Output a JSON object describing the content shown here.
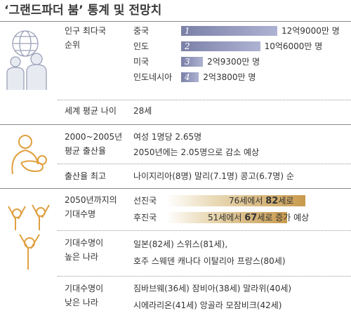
{
  "title": "‘그랜드파더 붐’ 통계 및 전망치",
  "population": {
    "label_lines": [
      "인구 최다국",
      "순위"
    ],
    "rows": [
      {
        "rank": "1",
        "country": "중국",
        "value": 129000,
        "value_label": "12억9000만 명"
      },
      {
        "rank": "2",
        "country": "인도",
        "value": 106000,
        "value_label": "10억6000만 명"
      },
      {
        "rank": "3",
        "country": "미국",
        "value": 29300,
        "value_label": "2억9300만 명"
      },
      {
        "rank": "4",
        "country": "인도네시아",
        "value": 23800,
        "value_label": "2억3800만 명"
      }
    ]
  },
  "world_age": {
    "label": "세계 평균 나이",
    "value": "28세"
  },
  "fertility": {
    "label_lines": [
      "2000~2005년",
      "평균 출산율"
    ],
    "lines": [
      "여성 1명당 2.65명",
      "2050년에는 2.05명으로 감소 예상"
    ]
  },
  "fertility_top": {
    "label": "출산율 최고",
    "text": "나이지리아(8명) 말리(7.1명) 콩고(6.7명) 순"
  },
  "life": {
    "label_lines": [
      "2050년까지의",
      "기대수명"
    ],
    "rows": [
      {
        "group": "선진국",
        "from": "76세에서",
        "to": "82",
        "suffix": "세로"
      },
      {
        "group": "후진국",
        "from": "51세에서",
        "to": "67",
        "suffix": "세로 증가 예상"
      }
    ]
  },
  "high": {
    "label_lines": [
      "기대수명이",
      "높은 나라"
    ],
    "lines": [
      "일본(82세) 스위스(81세),",
      "호주 스웨덴 캐나다 이탈리아 프랑스(80세)"
    ]
  },
  "low": {
    "label_lines": [
      "기대수명이",
      "낮은 나라"
    ],
    "lines": [
      "짐바브웨(36세) 잠비아(38세) 말라위(40세)",
      "시에라리온(41세) 앙골라 모잠비크(42세)"
    ]
  }
}
